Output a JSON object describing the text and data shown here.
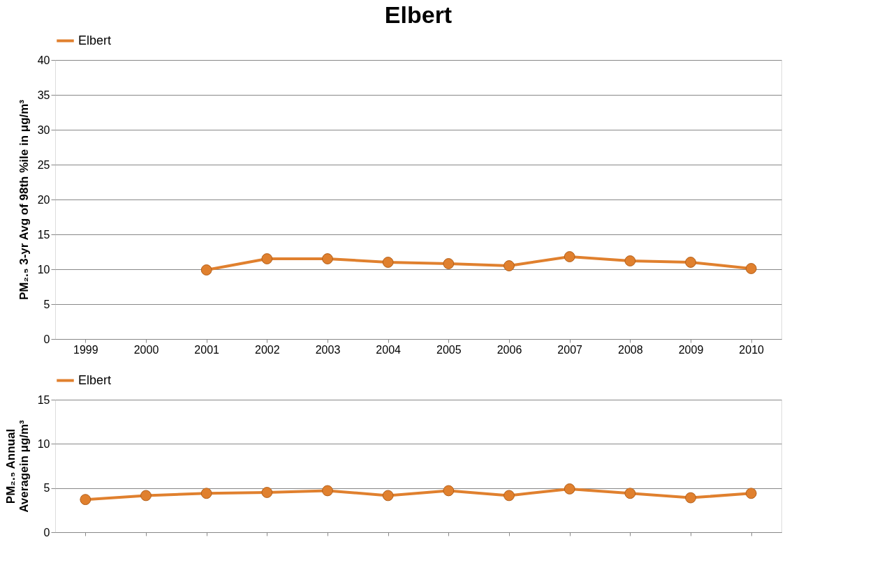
{
  "chart_data": [
    {
      "type": "line",
      "title": "Elbert",
      "ylabel": "PM₂.₅ 3-yr Avg of 98th %ile in μg/m³",
      "categories": [
        "1999",
        "2000",
        "2001",
        "2002",
        "2003",
        "2004",
        "2005",
        "2006",
        "2007",
        "2008",
        "2009",
        "2010"
      ],
      "series": [
        {
          "name": "Elbert",
          "color": "#e0802e",
          "values": [
            null,
            null,
            9.9,
            11.5,
            11.5,
            11.0,
            10.8,
            10.5,
            11.8,
            11.2,
            11.0,
            10.1
          ]
        }
      ],
      "ylim": [
        0,
        40
      ],
      "yticks": [
        0,
        5,
        10,
        15,
        20,
        25,
        30,
        35,
        40
      ],
      "grid": "y",
      "legend": "top",
      "marker": "circle",
      "line_style": "solid"
    },
    {
      "type": "line",
      "ylabel": "PM₂.₅ Annual\nAveragein μg/m³",
      "categories": [
        "1999",
        "2000",
        "2001",
        "2002",
        "2003",
        "2004",
        "2005",
        "2006",
        "2007",
        "2008",
        "2009",
        "2010"
      ],
      "series": [
        {
          "name": "Elbert",
          "color": "#e0802e",
          "values": [
            3.7,
            4.15,
            4.4,
            4.5,
            4.7,
            4.15,
            4.7,
            4.15,
            4.9,
            4.4,
            3.9,
            4.4
          ]
        }
      ],
      "ylim": [
        0,
        15
      ],
      "yticks": [
        0,
        5,
        10,
        15
      ],
      "grid": "y",
      "legend": "top",
      "marker": "circle",
      "line_style": "solid",
      "tick_labels": "y"
    }
  ]
}
